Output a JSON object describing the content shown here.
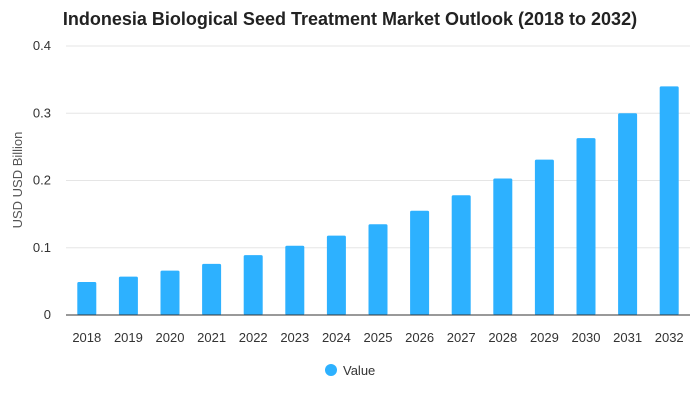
{
  "chart_data": {
    "type": "bar",
    "title": "Indonesia Biological Seed Treatment Market Outlook (2018 to 2032)",
    "ylabel": "USD USD Billion",
    "xlabel": "",
    "categories": [
      "2018",
      "2019",
      "2020",
      "2021",
      "2022",
      "2023",
      "2024",
      "2025",
      "2026",
      "2027",
      "2028",
      "2029",
      "2030",
      "2031",
      "2032"
    ],
    "series": [
      {
        "name": "Value",
        "color": "#2DB1FF",
        "values": [
          0.049,
          0.057,
          0.066,
          0.076,
          0.089,
          0.103,
          0.118,
          0.135,
          0.155,
          0.178,
          0.203,
          0.231,
          0.263,
          0.3,
          0.34
        ]
      }
    ],
    "ylim": [
      0,
      0.4
    ],
    "yticks": [
      "0",
      "0.1",
      "0.2",
      "0.3",
      "0.4"
    ],
    "ytick_values": [
      0,
      0.1,
      0.2,
      0.3,
      0.4
    ],
    "grid": true,
    "legend_position": "bottom-center"
  }
}
